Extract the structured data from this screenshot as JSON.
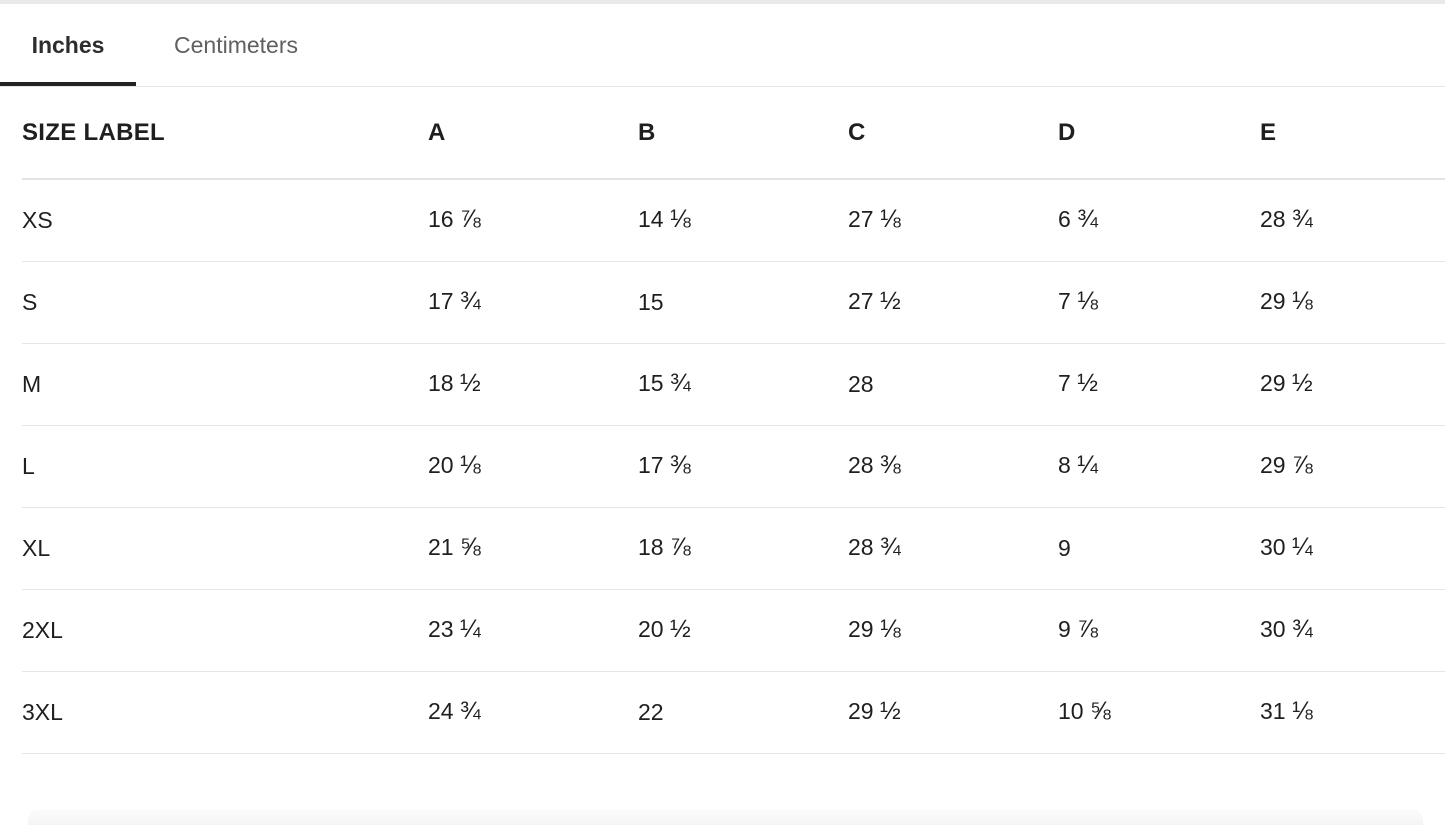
{
  "tabs": {
    "inches_label": "Inches",
    "centimeters_label": "Centimeters",
    "active_tab": "Inches"
  },
  "table": {
    "columns": [
      "SIZE LABEL",
      "A",
      "B",
      "C",
      "D",
      "E"
    ],
    "rows": [
      {
        "label": "XS",
        "values": [
          "16 ⅞",
          "14 ⅛",
          "27 ⅛",
          "6 ¾",
          "28 ¾"
        ]
      },
      {
        "label": "S",
        "values": [
          "17 ¾",
          "15",
          "27 ½",
          "7 ⅛",
          "29 ⅛"
        ]
      },
      {
        "label": "M",
        "values": [
          "18 ½",
          "15 ¾",
          "28",
          "7 ½",
          "29 ½"
        ]
      },
      {
        "label": "L",
        "values": [
          "20 ⅛",
          "17 ⅜",
          "28 ⅜",
          "8 ¼",
          "29 ⅞"
        ]
      },
      {
        "label": "XL",
        "values": [
          "21 ⅝",
          "18 ⅞",
          "28 ¾",
          "9",
          "30 ¼"
        ]
      },
      {
        "label": "2XL",
        "values": [
          "23 ¼",
          "20 ½",
          "29 ⅛",
          "9 ⅞",
          "30 ¾"
        ]
      },
      {
        "label": "3XL",
        "values": [
          "24 ¾",
          "22",
          "29 ½",
          "10 ⅝",
          "31 ⅛"
        ]
      }
    ]
  },
  "colors": {
    "active_tab_underline": "#222222",
    "inactive_tab_text": "#606060",
    "divider": "#e6e6e6",
    "text": "#1f1f1f"
  }
}
